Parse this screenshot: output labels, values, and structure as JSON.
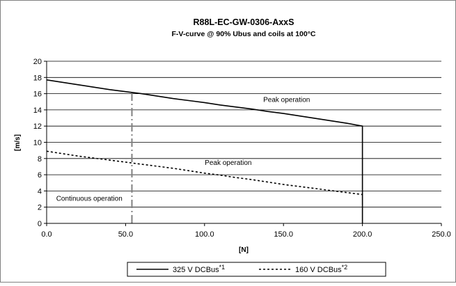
{
  "chart_data": {
    "type": "line",
    "title": "R88L-EC-GW-0306-AxxS",
    "subtitle": "F-V-curve @ 90% Ubus and coils at 100°C",
    "xlabel": "[N]",
    "ylabel": "[m/s]",
    "xlim": [
      0,
      250
    ],
    "ylim": [
      0,
      20
    ],
    "x_ticks": [
      "0.0",
      "50.0",
      "100.0",
      "150.0",
      "200.0",
      "250.0"
    ],
    "y_ticks": [
      "0",
      "2",
      "4",
      "6",
      "8",
      "10",
      "12",
      "14",
      "16",
      "18",
      "20"
    ],
    "grid": "horizontal",
    "legend_position": "bottom",
    "series": [
      {
        "name": "325 V DCBus",
        "superscript": "*1",
        "color": "#000000",
        "style": "solid",
        "x": [
          0,
          10,
          20,
          30,
          40,
          50,
          60,
          70,
          80,
          90,
          100,
          110,
          120,
          130,
          140,
          150,
          160,
          170,
          180,
          190,
          200,
          200
        ],
        "y": [
          17.7,
          17.4,
          17.1,
          16.8,
          16.5,
          16.25,
          16.0,
          15.7,
          15.4,
          15.15,
          14.9,
          14.6,
          14.35,
          14.1,
          13.8,
          13.55,
          13.25,
          12.95,
          12.65,
          12.35,
          12.0,
          0
        ]
      },
      {
        "name": "160 V DCBus",
        "superscript": "*2",
        "color": "#000000",
        "style": "dashed",
        "x": [
          0,
          10,
          20,
          30,
          40,
          50,
          60,
          70,
          80,
          90,
          100,
          110,
          120,
          130,
          140,
          150,
          160,
          170,
          180,
          190,
          200
        ],
        "y": [
          8.9,
          8.6,
          8.3,
          8.05,
          7.8,
          7.55,
          7.3,
          7.05,
          6.8,
          6.5,
          6.2,
          5.95,
          5.65,
          5.4,
          5.1,
          4.8,
          4.55,
          4.3,
          4.05,
          3.8,
          3.55
        ]
      }
    ],
    "continuous_limit": {
      "x": 54,
      "y_max": 16.2,
      "color": "#808080"
    },
    "annotations": [
      {
        "text": "Peak operation",
        "x": 152,
        "y": 15.0
      },
      {
        "text": "Peak operation",
        "x": 115,
        "y": 7.2
      },
      {
        "text": "Continuous operation",
        "x": 27,
        "y": 2.8
      }
    ]
  }
}
